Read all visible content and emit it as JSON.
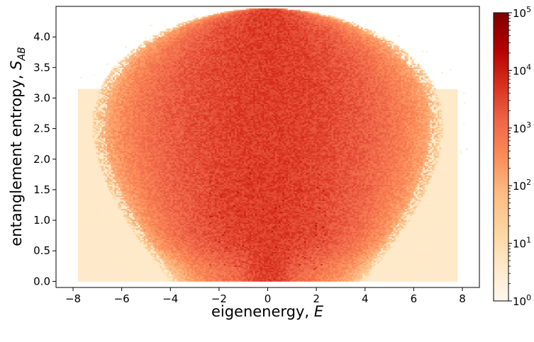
{
  "chart_data": {
    "type": "heatmap",
    "title": "",
    "xlabel": "eigenenergy, E",
    "ylabel": "entanglement entropy, S_AB",
    "xlim": [
      -8.7,
      8.7
    ],
    "ylim": [
      -0.1,
      4.5
    ],
    "x_ticks": [
      -8,
      -6,
      -4,
      -2,
      0,
      2,
      4,
      6,
      8
    ],
    "y_ticks": [
      0.0,
      0.5,
      1.0,
      1.5,
      2.0,
      2.5,
      3.0,
      3.5,
      4.0
    ],
    "x_tick_labels": [
      "−8",
      "−6",
      "−4",
      "−2",
      "0",
      "2",
      "4",
      "6",
      "8"
    ],
    "y_tick_labels": [
      "0.0",
      "0.5",
      "1.0",
      "1.5",
      "2.0",
      "2.5",
      "3.0",
      "3.5",
      "4.0"
    ],
    "colorbar": {
      "scale": "log",
      "range": [
        1,
        100000
      ],
      "colormap": "OrRd",
      "tick_values": [
        1,
        10,
        100,
        1000,
        10000,
        100000
      ],
      "tick_bases": [
        "10",
        "10",
        "10",
        "10",
        "10",
        "10"
      ],
      "tick_exponents": [
        "0",
        "1",
        "2",
        "3",
        "4",
        "5"
      ]
    },
    "grid": false,
    "legend": "none"
  }
}
